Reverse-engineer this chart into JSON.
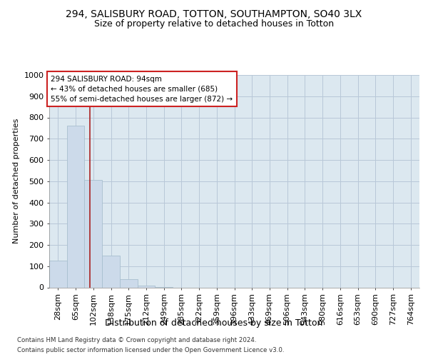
{
  "title": "294, SALISBURY ROAD, TOTTON, SOUTHAMPTON, SO40 3LX",
  "subtitle": "Size of property relative to detached houses in Totton",
  "xlabel": "Distribution of detached houses by size in Totton",
  "ylabel": "Number of detached properties",
  "footer1": "Contains HM Land Registry data © Crown copyright and database right 2024.",
  "footer2": "Contains public sector information licensed under the Open Government Licence v3.0.",
  "bin_labels": [
    "28sqm",
    "65sqm",
    "102sqm",
    "138sqm",
    "175sqm",
    "212sqm",
    "249sqm",
    "285sqm",
    "322sqm",
    "359sqm",
    "396sqm",
    "433sqm",
    "469sqm",
    "506sqm",
    "543sqm",
    "580sqm",
    "616sqm",
    "653sqm",
    "690sqm",
    "727sqm",
    "764sqm"
  ],
  "bar_values": [
    125,
    760,
    505,
    148,
    40,
    10,
    3,
    0,
    0,
    0,
    0,
    0,
    0,
    0,
    0,
    0,
    0,
    0,
    0,
    0,
    0
  ],
  "bar_color": "#ccdaea",
  "bar_edgecolor": "#a8bfcf",
  "grid_color": "#b8c8d8",
  "bg_color": "#dce8f0",
  "vline_x": 1.82,
  "vline_color": "#aa2222",
  "annotation_text": "294 SALISBURY ROAD: 94sqm\n← 43% of detached houses are smaller (685)\n55% of semi-detached houses are larger (872) →",
  "annotation_box_color": "#cc2222",
  "ylim": [
    0,
    1000
  ],
  "yticks": [
    0,
    100,
    200,
    300,
    400,
    500,
    600,
    700,
    800,
    900,
    1000
  ],
  "title_fontsize": 10,
  "subtitle_fontsize": 9,
  "xlabel_fontsize": 9,
  "ylabel_fontsize": 8,
  "tick_fontsize": 8,
  "annotation_fontsize": 7.5
}
